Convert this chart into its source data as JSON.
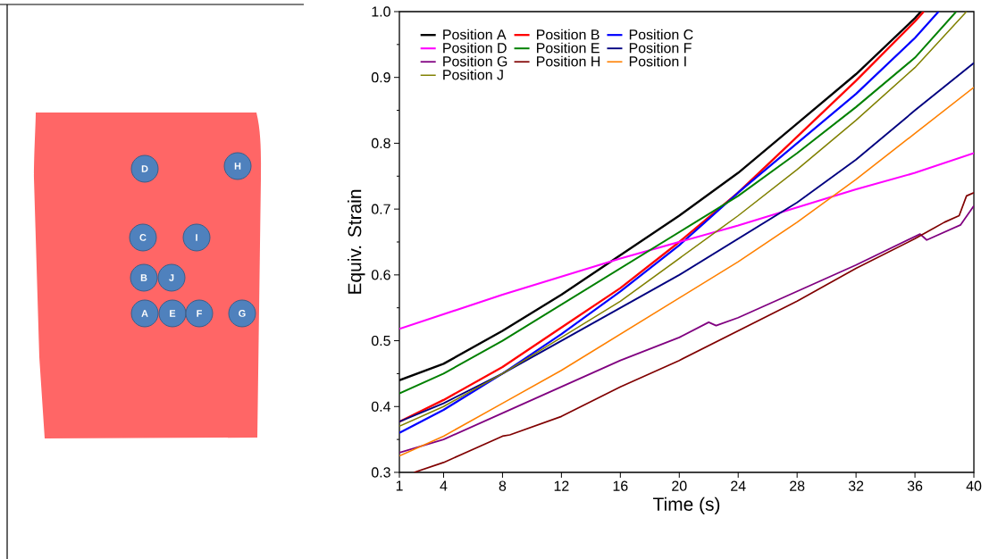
{
  "chart_data": {
    "type": "line",
    "xlabel": "Time (s)",
    "ylabel": "Equiv. Strain",
    "xlim": [
      1,
      40
    ],
    "ylim": [
      0.3,
      1.0
    ],
    "xticks": [
      1,
      4,
      8,
      12,
      16,
      20,
      24,
      28,
      32,
      36,
      40
    ],
    "yticks": [
      0.3,
      0.4,
      0.5,
      0.6,
      0.7,
      0.8,
      0.9,
      {
        "value": 1.0,
        "label": "1.0"
      }
    ],
    "grid": false,
    "legend": "top left",
    "marker": "none",
    "line_style": "solid",
    "annotations": [
      "A",
      "B",
      "C",
      "D",
      "E",
      "F",
      "G",
      "H",
      "I",
      "J"
    ],
    "series": [
      {
        "name": "Position A",
        "color": "#000000",
        "x": [
          1,
          4,
          8,
          12,
          16,
          20,
          24,
          28,
          32,
          36,
          36.4
        ],
        "values": [
          0.44,
          0.465,
          0.515,
          0.57,
          0.63,
          0.69,
          0.755,
          0.83,
          0.905,
          0.99,
          1.0
        ]
      },
      {
        "name": "Position B",
        "color": "#ff0000",
        "x": [
          1,
          4,
          8,
          12,
          16,
          20,
          24,
          28,
          32,
          36,
          36.6
        ],
        "values": [
          0.377,
          0.41,
          0.46,
          0.52,
          0.58,
          0.65,
          0.725,
          0.81,
          0.895,
          0.985,
          1.0
        ]
      },
      {
        "name": "Position C",
        "color": "#0000ff",
        "x": [
          1,
          4,
          8,
          12,
          16,
          20,
          24,
          28,
          32,
          36,
          37.6
        ],
        "values": [
          0.36,
          0.395,
          0.45,
          0.51,
          0.575,
          0.645,
          0.725,
          0.8,
          0.875,
          0.96,
          1.0
        ]
      },
      {
        "name": "Position D",
        "color": "#ff00ff",
        "x": [
          1,
          8,
          16,
          24,
          32,
          36,
          40
        ],
        "values": [
          0.518,
          0.57,
          0.625,
          0.675,
          0.73,
          0.755,
          0.785
        ]
      },
      {
        "name": "Position E",
        "color": "#008000",
        "x": [
          1,
          4,
          8,
          12,
          16,
          20,
          24,
          28,
          32,
          36,
          38.8
        ],
        "values": [
          0.42,
          0.45,
          0.5,
          0.555,
          0.61,
          0.665,
          0.72,
          0.785,
          0.855,
          0.93,
          1.0
        ]
      },
      {
        "name": "Position F",
        "color": "#000080",
        "x": [
          1,
          4,
          8,
          12,
          16,
          20,
          24,
          28,
          32,
          36,
          40
        ],
        "values": [
          0.377,
          0.405,
          0.45,
          0.5,
          0.55,
          0.6,
          0.655,
          0.71,
          0.775,
          0.85,
          0.922
        ]
      },
      {
        "name": "Position G",
        "color": "#800080",
        "x": [
          1,
          4,
          8,
          12,
          16,
          20,
          22,
          22.5,
          24,
          28,
          32,
          36.35,
          36.8,
          39.1,
          40
        ],
        "values": [
          0.33,
          0.35,
          0.39,
          0.43,
          0.47,
          0.505,
          0.528,
          0.523,
          0.535,
          0.575,
          0.615,
          0.662,
          0.653,
          0.676,
          0.705
        ]
      },
      {
        "name": "Position H",
        "color": "#800000",
        "x": [
          2,
          4,
          8,
          8.5,
          12,
          16,
          20,
          24,
          28,
          32,
          36,
          38,
          39,
          39.5,
          40
        ],
        "values": [
          0.3,
          0.315,
          0.355,
          0.357,
          0.385,
          0.43,
          0.47,
          0.515,
          0.56,
          0.61,
          0.655,
          0.68,
          0.69,
          0.72,
          0.725
        ]
      },
      {
        "name": "Position I",
        "color": "#ff8000",
        "x": [
          1,
          4,
          8,
          12,
          16,
          20,
          24,
          28,
          32,
          36,
          40
        ],
        "values": [
          0.325,
          0.355,
          0.405,
          0.455,
          0.51,
          0.565,
          0.62,
          0.68,
          0.745,
          0.815,
          0.885
        ]
      },
      {
        "name": "Position J",
        "color": "#808000",
        "x": [
          1,
          4,
          8,
          12,
          16,
          20,
          24,
          28,
          32,
          36,
          39.5
        ],
        "values": [
          0.37,
          0.4,
          0.45,
          0.505,
          0.56,
          0.625,
          0.69,
          0.76,
          0.835,
          0.915,
          1.0
        ]
      }
    ]
  }
}
